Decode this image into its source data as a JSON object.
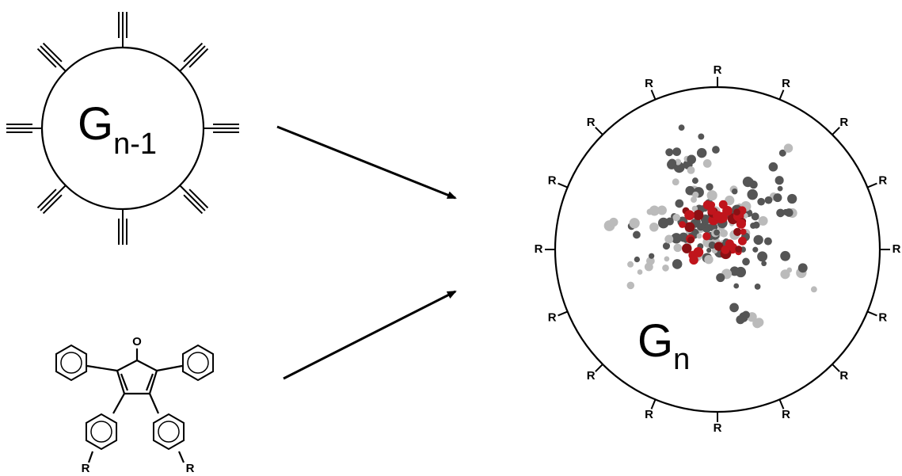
{
  "reactant_core": {
    "label": "G",
    "subscript": "n-1"
  },
  "monomer": {
    "carbonyl_atom": "O",
    "substituents": [
      "R",
      "R"
    ]
  },
  "product": {
    "label": "G",
    "subscript": "n",
    "periphery": [
      "R",
      "R",
      "R",
      "R",
      "R",
      "R",
      "R",
      "R",
      "R",
      "R",
      "R",
      "R",
      "R",
      "R",
      "R",
      "R"
    ]
  }
}
